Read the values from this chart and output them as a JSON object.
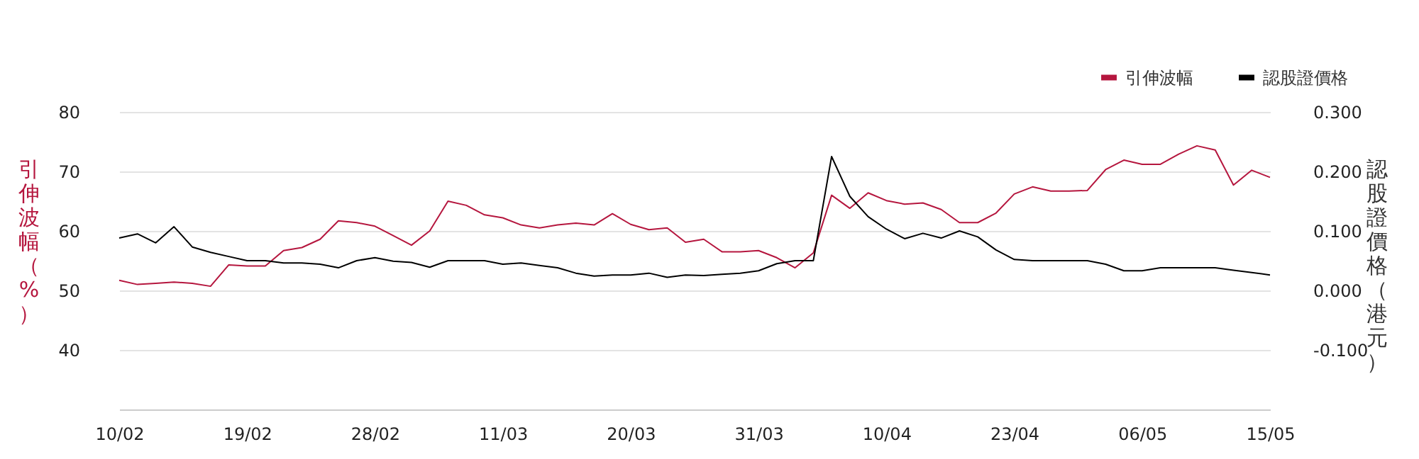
{
  "chart_data": {
    "type": "line",
    "categories": [
      "10/02",
      null,
      null,
      null,
      null,
      null,
      null,
      "19/02",
      null,
      null,
      null,
      null,
      null,
      null,
      "28/02",
      null,
      null,
      null,
      null,
      null,
      null,
      "11/03",
      null,
      null,
      null,
      null,
      null,
      null,
      "20/03",
      null,
      null,
      null,
      null,
      null,
      null,
      "31/03",
      null,
      null,
      null,
      null,
      null,
      null,
      "10/04",
      null,
      null,
      null,
      null,
      null,
      null,
      "23/04",
      null,
      null,
      null,
      null,
      null,
      null,
      "06/05",
      null,
      null,
      null,
      null,
      null,
      null,
      "15/05"
    ],
    "series": [
      {
        "name": "引伸波幅",
        "color": "#b5163e",
        "axis": "y",
        "values": [
          51.7,
          51.0,
          51.2,
          51.4,
          51.2,
          50.7,
          54.3,
          54.1,
          54.1,
          56.7,
          57.2,
          58.6,
          61.7,
          61.4,
          60.8,
          59.2,
          57.6,
          60.0,
          65.0,
          64.3,
          62.7,
          62.2,
          61.0,
          60.5,
          61.0,
          61.3,
          61.0,
          62.9,
          61.1,
          60.2,
          60.5,
          58.1,
          58.6,
          56.5,
          56.5,
          56.7,
          55.5,
          53.8,
          56.3,
          66.0,
          63.8,
          66.4,
          65.1,
          64.5,
          64.7,
          63.6,
          61.4,
          61.4,
          63.0,
          66.2,
          67.4,
          66.7,
          66.7,
          66.8,
          70.3,
          71.9,
          71.2,
          71.2,
          72.9,
          74.3,
          73.6,
          67.7,
          70.2,
          69.0
        ]
      },
      {
        "name": "認股證價格",
        "color": "#000000",
        "axis": "y2",
        "values": [
          0.088,
          0.095,
          0.08,
          0.107,
          0.073,
          0.064,
          0.057,
          0.05,
          0.05,
          0.046,
          0.046,
          0.044,
          0.038,
          0.05,
          0.055,
          0.049,
          0.047,
          0.039,
          0.05,
          0.05,
          0.05,
          0.044,
          0.046,
          0.042,
          0.038,
          0.029,
          0.024,
          0.026,
          0.026,
          0.029,
          0.022,
          0.026,
          0.025,
          0.027,
          0.029,
          0.033,
          0.045,
          0.05,
          0.05,
          0.225,
          0.158,
          0.124,
          0.103,
          0.087,
          0.096,
          0.088,
          0.1,
          0.09,
          0.068,
          0.052,
          0.05,
          0.05,
          0.05,
          0.05,
          0.044,
          0.033,
          0.033,
          0.038,
          0.038,
          0.038,
          0.038,
          0.034,
          0.03,
          0.026
        ]
      }
    ],
    "ylabel": "引伸波幅（%）",
    "y2label": "認股證價格（港元）",
    "ylim": [
      30,
      80
    ],
    "yticks": [
      40,
      50,
      60,
      70,
      80
    ],
    "y2lim": [
      -0.2,
      0.3
    ],
    "y2ticks": [
      {
        "value": -0.1,
        "label": "-0.100"
      },
      {
        "value": 0,
        "label": "0.000"
      },
      {
        "value": 0.1,
        "label": "0.100"
      },
      {
        "value": 0.2,
        "label": "0.200"
      },
      {
        "value": 0.3,
        "label": "0.300"
      }
    ],
    "grid": "y",
    "legend": "top right"
  }
}
